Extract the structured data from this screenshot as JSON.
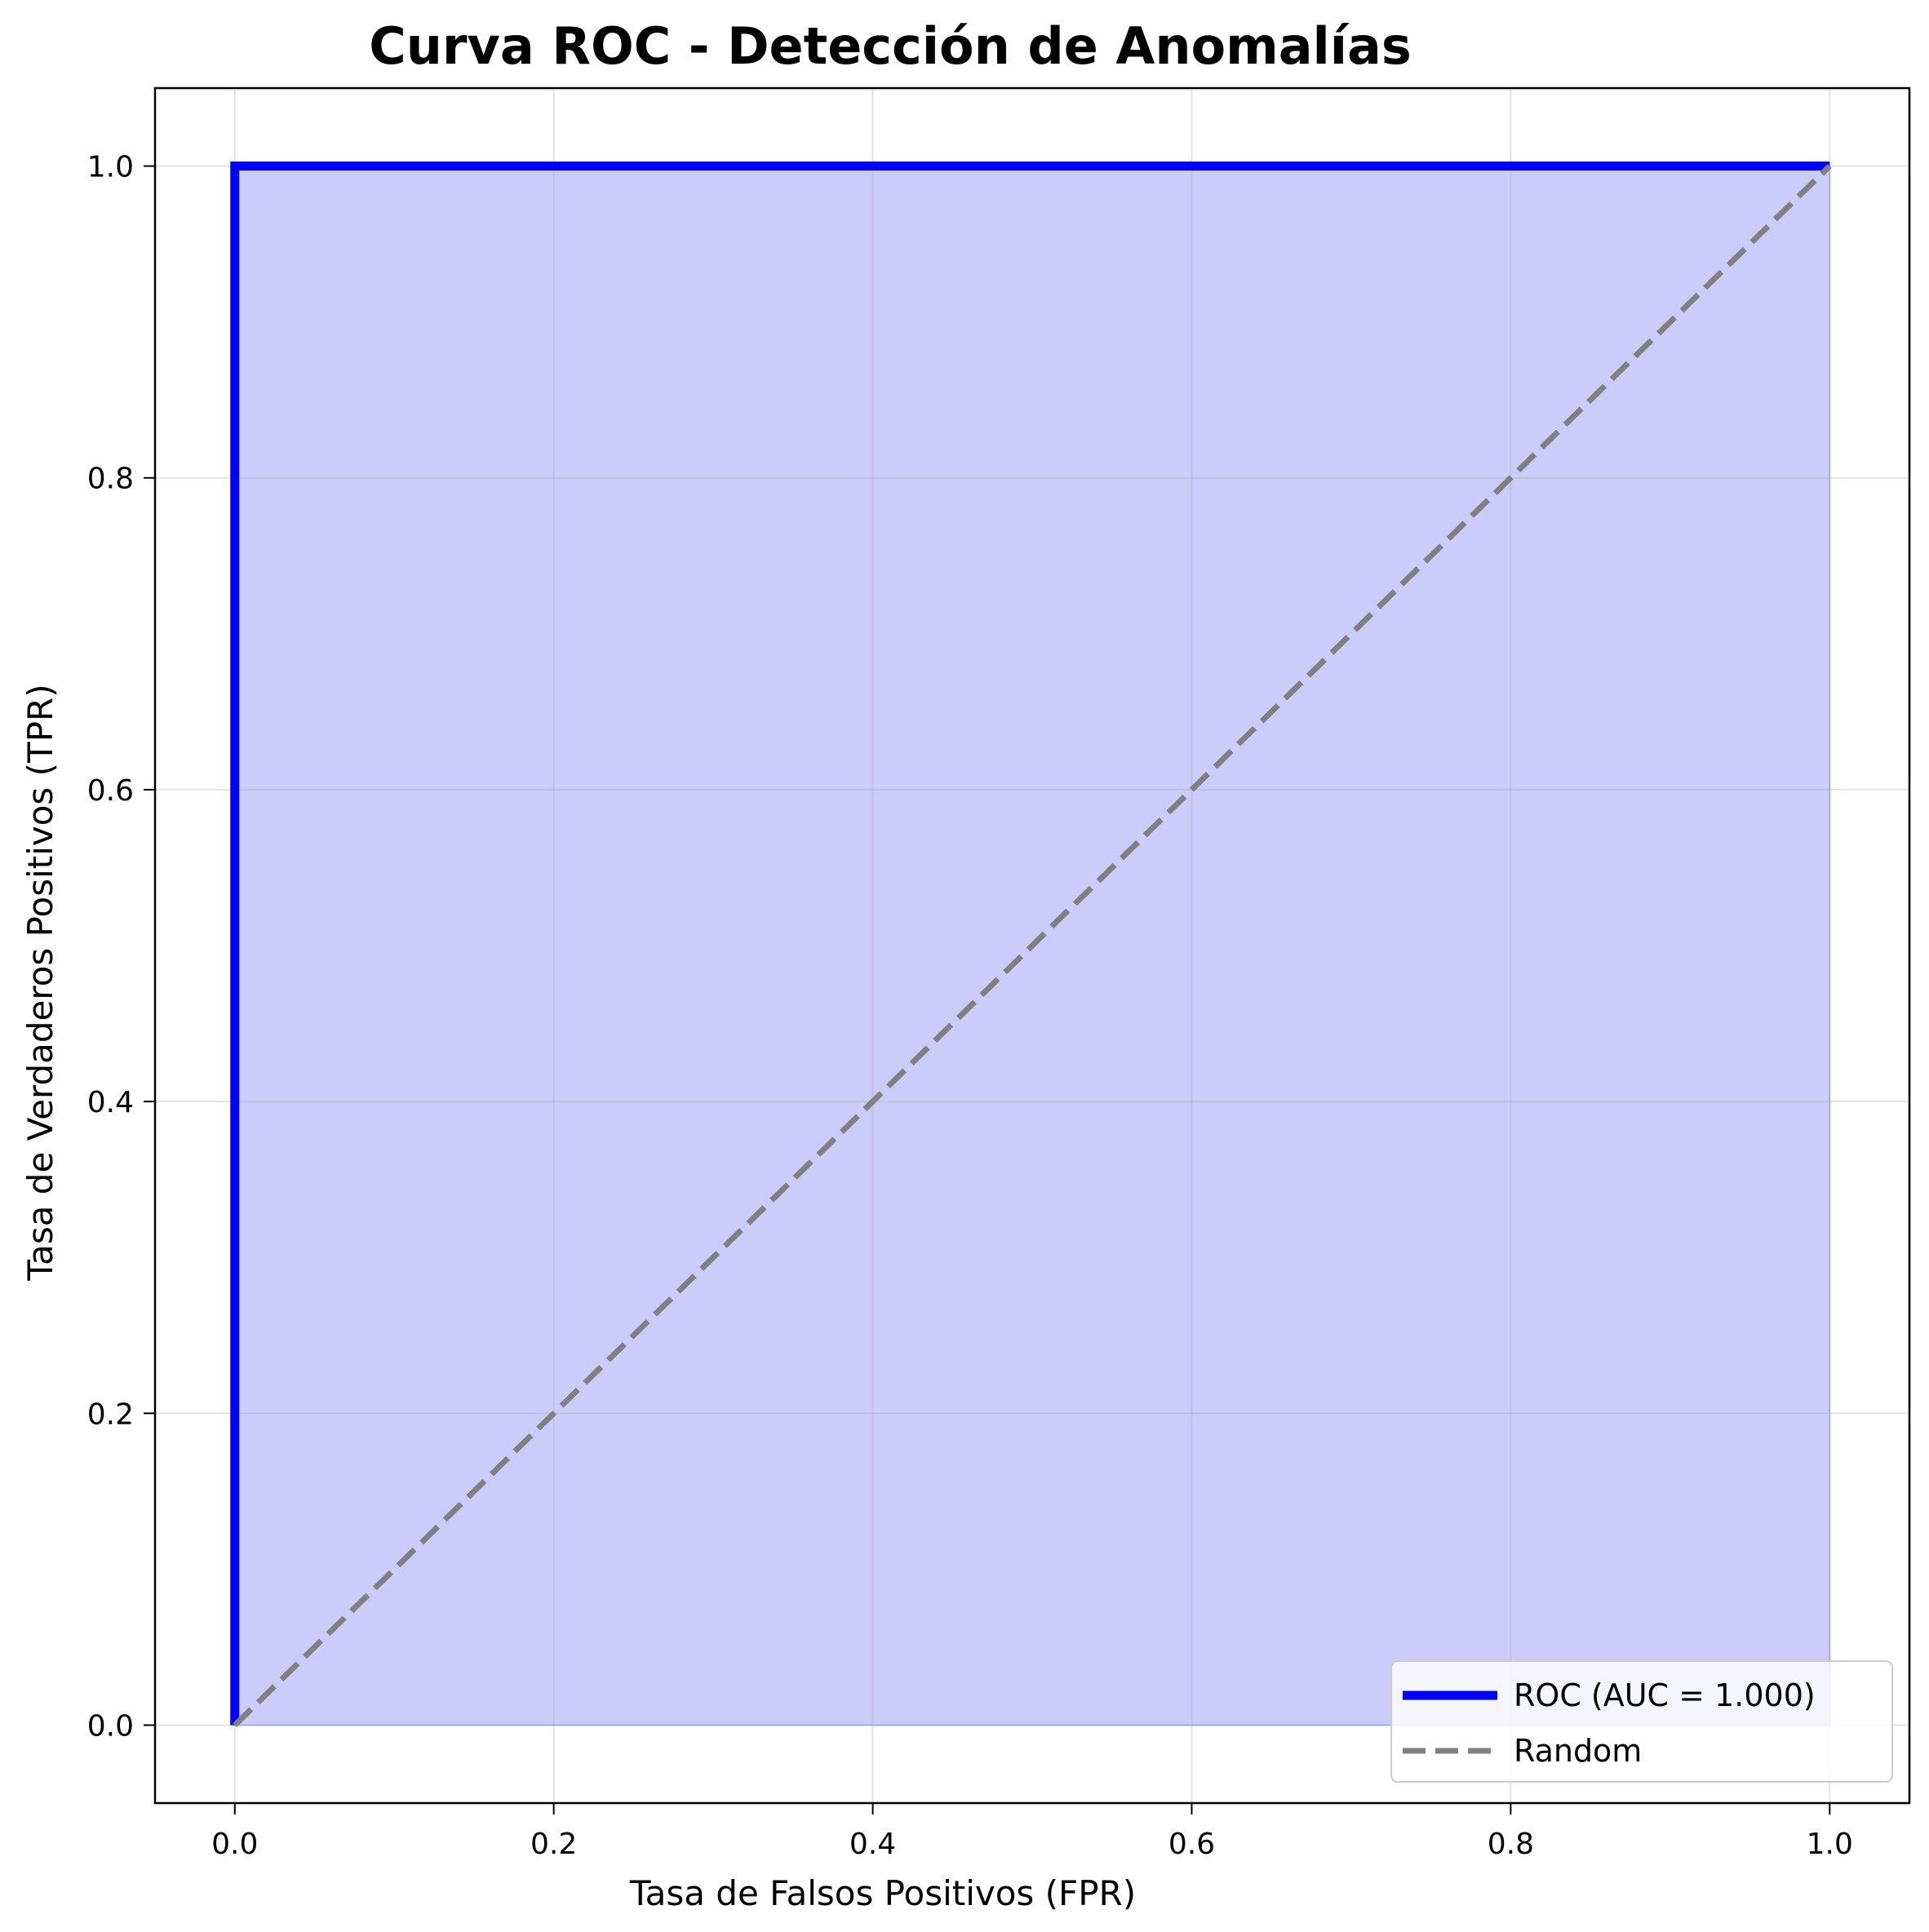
{
  "chart_data": {
    "type": "line",
    "title": "Curva ROC - Detección de Anomalías",
    "xlabel": "Tasa de Falsos Positivos (FPR)",
    "ylabel": "Tasa de Verdaderos Positivos (TPR)",
    "xlim": [
      -0.05,
      1.05
    ],
    "ylim": [
      -0.05,
      1.05
    ],
    "x_ticks": [
      "0.0",
      "0.2",
      "0.4",
      "0.6",
      "0.8",
      "1.0"
    ],
    "y_ticks": [
      "0.0",
      "0.2",
      "0.4",
      "0.6",
      "0.8",
      "1.0"
    ],
    "grid": true,
    "legend_position": "lower-right",
    "series": [
      {
        "name": "ROC (AUC = 1.000)",
        "x": [
          0.0,
          0.0,
          1.0
        ],
        "y": [
          0.0,
          1.0,
          1.0
        ],
        "color": "#0000ff",
        "style": "solid",
        "fill_under": true,
        "fill_color": "#ccccfb"
      },
      {
        "name": "Random",
        "x": [
          0.0,
          1.0
        ],
        "y": [
          0.0,
          1.0
        ],
        "color": "#808080",
        "style": "dashed"
      }
    ]
  }
}
